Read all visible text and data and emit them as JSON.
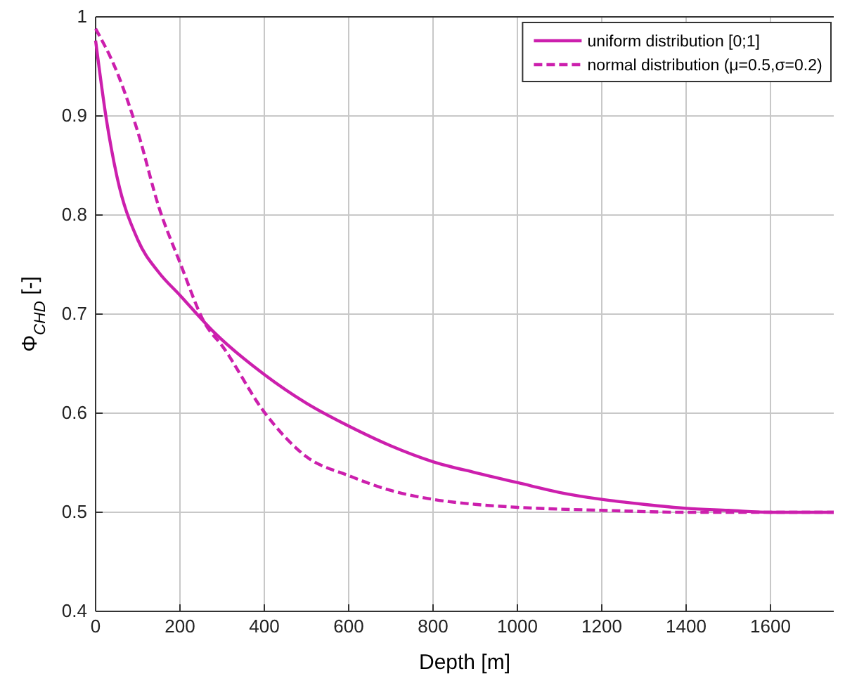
{
  "chart_data": {
    "type": "line",
    "xlabel": "Depth [m]",
    "ylabel": "Φ$_{CHD}$ [-]",
    "xlim": [
      0,
      1750
    ],
    "xticks": [
      0,
      200,
      400,
      600,
      800,
      1000,
      1200,
      1400,
      1600
    ],
    "ylim": [
      0.4,
      1
    ],
    "yticks": [
      0.4,
      0.5,
      0.6,
      0.7,
      0.8,
      0.9,
      1
    ],
    "grid": true,
    "legend": "top right",
    "series": [
      {
        "name": "uniform distribution [0;1]",
        "color": "#cc1fad",
        "line_style": "solid",
        "x": [
          0,
          25,
          50,
          100,
          150,
          200,
          280,
          400,
          500,
          600,
          700,
          800,
          900,
          1000,
          1100,
          1200,
          1300,
          1400,
          1500,
          1600,
          1750
        ],
        "values": [
          0.976,
          0.898,
          0.84,
          0.775,
          0.742,
          0.719,
          0.682,
          0.639,
          0.61,
          0.587,
          0.567,
          0.551,
          0.54,
          0.53,
          0.52,
          0.513,
          0.508,
          0.504,
          0.502,
          0.5,
          0.5
        ]
      },
      {
        "name": "normal distribution (μ=0.5,σ=0.2)",
        "color": "#cc1fad",
        "line_style": "dashed",
        "x": [
          0,
          50,
          100,
          150,
          200,
          260,
          300,
          400,
          500,
          600,
          700,
          800,
          900,
          1000,
          1200,
          1400,
          1600,
          1750
        ],
        "values": [
          0.988,
          0.945,
          0.884,
          0.808,
          0.752,
          0.69,
          0.668,
          0.601,
          0.556,
          0.537,
          0.522,
          0.513,
          0.508,
          0.505,
          0.502,
          0.5,
          0.5,
          0.5
        ]
      }
    ]
  }
}
